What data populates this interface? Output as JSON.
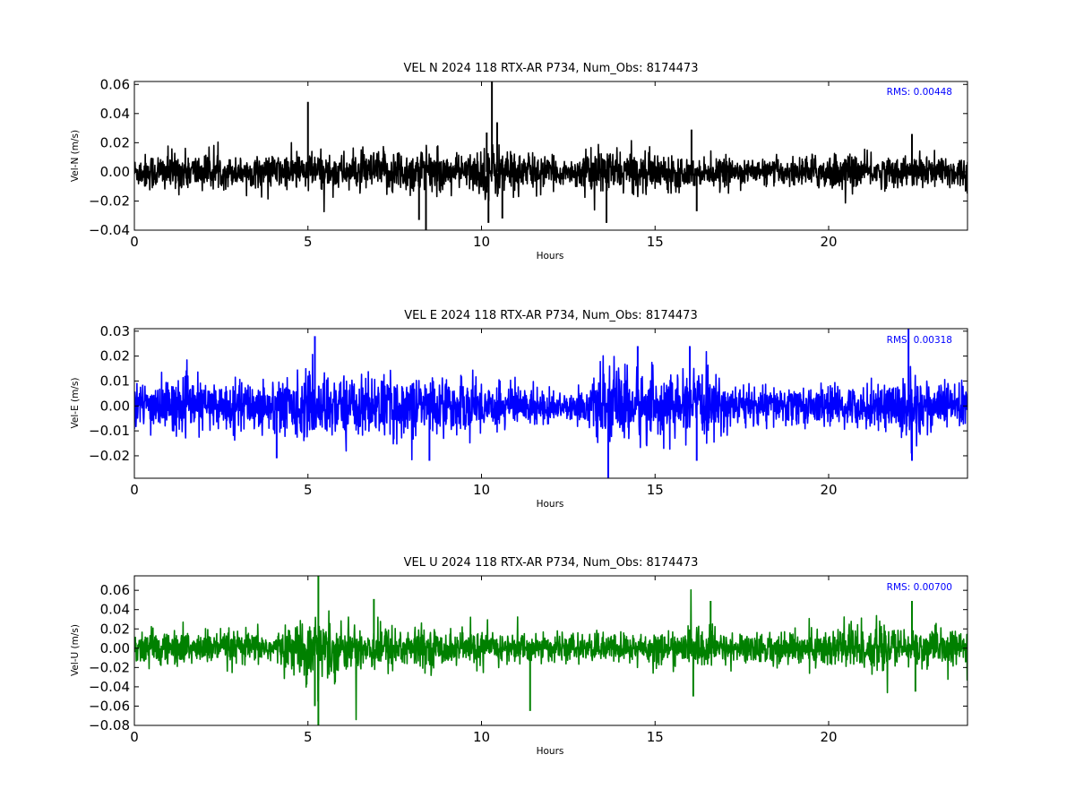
{
  "chart_data": [
    {
      "type": "line",
      "title": "VEL N 2024 118 RTX-AR  P734, Num_Obs: 8174473",
      "xlabel": "Hours",
      "ylabel": "Vel-N (m/s)",
      "annotation": "RMS:  0.00448",
      "color": "#000000",
      "xlim": [
        0,
        24
      ],
      "ylim": [
        -0.04,
        0.062
      ],
      "xticks": [
        0,
        5,
        10,
        15,
        20
      ],
      "xtick_labels": [
        "0",
        "5",
        "10",
        "15",
        "20"
      ],
      "yticks": [
        -0.04,
        -0.02,
        0.0,
        0.02,
        0.04,
        0.06
      ],
      "ytick_labels": [
        "−0.04",
        "−0.02",
        "0.00",
        "0.02",
        "0.04",
        "0.06"
      ],
      "amplitude_envelope": {
        "x": [
          0,
          0.3,
          0.5,
          1,
          2,
          3,
          4,
          5,
          6,
          7,
          7.5,
          8,
          8.5,
          9,
          9.5,
          10,
          10.3,
          11,
          11.5,
          12,
          12.5,
          13,
          13.5,
          14,
          15,
          16,
          16.2,
          17,
          18,
          19,
          20,
          21,
          22,
          23,
          24
        ],
        "y": [
          0.011,
          0.014,
          0.015,
          0.016,
          0.014,
          0.011,
          0.013,
          0.016,
          0.014,
          0.016,
          0.019,
          0.018,
          0.018,
          0.014,
          0.013,
          0.019,
          0.022,
          0.017,
          0.014,
          0.011,
          0.009,
          0.015,
          0.018,
          0.016,
          0.015,
          0.012,
          0.009,
          0.011,
          0.009,
          0.011,
          0.015,
          0.013,
          0.012,
          0.014,
          0.013
        ]
      },
      "spikes": [
        {
          "x": 5.0,
          "y": 0.048
        },
        {
          "x": 8.4,
          "y": -0.04
        },
        {
          "x": 8.2,
          "y": -0.033
        },
        {
          "x": 10.15,
          "y": 0.027
        },
        {
          "x": 10.2,
          "y": -0.035
        },
        {
          "x": 10.3,
          "y": 0.062
        },
        {
          "x": 10.45,
          "y": 0.034
        },
        {
          "x": 10.6,
          "y": -0.032
        },
        {
          "x": 13.6,
          "y": -0.035
        },
        {
          "x": 16.05,
          "y": 0.029
        },
        {
          "x": 16.2,
          "y": -0.027
        },
        {
          "x": 22.4,
          "y": 0.026
        }
      ]
    },
    {
      "type": "line",
      "title": "VEL E 2024 118 RTX-AR  P734, Num_Obs: 8174473",
      "xlabel": "Hours",
      "ylabel": "Vel-E (m/s)",
      "annotation": "RMS:  0.00318",
      "color": "#0000ff",
      "xlim": [
        0,
        24
      ],
      "ylim": [
        -0.029,
        0.031
      ],
      "xticks": [
        0,
        5,
        10,
        15,
        20
      ],
      "xtick_labels": [
        "0",
        "5",
        "10",
        "15",
        "20"
      ],
      "yticks": [
        -0.02,
        -0.01,
        0.0,
        0.01,
        0.02,
        0.03
      ],
      "ytick_labels": [
        "−0.02",
        "−0.01",
        "0.00",
        "0.01",
        "0.02",
        "0.03"
      ],
      "amplitude_envelope": {
        "x": [
          0,
          1,
          2,
          3,
          4,
          5,
          6,
          7,
          8,
          9,
          10,
          11,
          12,
          12.5,
          13,
          13.5,
          14,
          15,
          16,
          16.2,
          17,
          18,
          19,
          20,
          21,
          22,
          22.4,
          23,
          24
        ],
        "y": [
          0.011,
          0.012,
          0.011,
          0.011,
          0.013,
          0.015,
          0.014,
          0.014,
          0.014,
          0.013,
          0.012,
          0.01,
          0.008,
          0.005,
          0.009,
          0.015,
          0.018,
          0.015,
          0.012,
          0.016,
          0.011,
          0.009,
          0.009,
          0.009,
          0.009,
          0.013,
          0.018,
          0.011,
          0.01
        ]
      },
      "spikes": [
        {
          "x": 4.1,
          "y": -0.021
        },
        {
          "x": 5.2,
          "y": 0.028
        },
        {
          "x": 8.5,
          "y": -0.022
        },
        {
          "x": 13.65,
          "y": -0.029
        },
        {
          "x": 14.5,
          "y": 0.024
        },
        {
          "x": 16.0,
          "y": 0.024
        },
        {
          "x": 16.2,
          "y": -0.022
        },
        {
          "x": 22.3,
          "y": 0.031
        },
        {
          "x": 22.4,
          "y": -0.022
        }
      ]
    },
    {
      "type": "line",
      "title": "VEL U 2024 118 RTX-AR  P734, Num_Obs: 8174473",
      "xlabel": "Hours",
      "ylabel": "Vel-U (m/s)",
      "annotation": "RMS:  0.00700",
      "color": "#008000",
      "xlim": [
        0,
        24
      ],
      "ylim": [
        -0.08,
        0.075
      ],
      "xticks": [
        0,
        5,
        10,
        15,
        20
      ],
      "xtick_labels": [
        "0",
        "5",
        "10",
        "15",
        "20"
      ],
      "yticks": [
        -0.08,
        -0.06,
        -0.04,
        -0.02,
        0.0,
        0.02,
        0.04,
        0.06
      ],
      "ytick_labels": [
        "−0.08",
        "−0.06",
        "−0.04",
        "−0.02",
        "0.00",
        "0.02",
        "0.04",
        "0.06"
      ],
      "amplitude_envelope": {
        "x": [
          0,
          1,
          2,
          3,
          4,
          4.5,
          5,
          5.3,
          5.7,
          6,
          7,
          8,
          9,
          10,
          11,
          12,
          13,
          14,
          15,
          16,
          16.2,
          17,
          18,
          19,
          20,
          20.5,
          21,
          22,
          23,
          24
        ],
        "y": [
          0.02,
          0.022,
          0.02,
          0.02,
          0.018,
          0.025,
          0.038,
          0.042,
          0.035,
          0.027,
          0.028,
          0.025,
          0.02,
          0.02,
          0.018,
          0.016,
          0.016,
          0.018,
          0.02,
          0.018,
          0.03,
          0.018,
          0.018,
          0.02,
          0.025,
          0.035,
          0.03,
          0.022,
          0.022,
          0.02
        ]
      },
      "spikes": [
        {
          "x": 5.2,
          "y": -0.06
        },
        {
          "x": 5.3,
          "y": 0.075
        },
        {
          "x": 5.3,
          "y": -0.08
        },
        {
          "x": 6.9,
          "y": 0.051
        },
        {
          "x": 11.4,
          "y": -0.065
        },
        {
          "x": 16.1,
          "y": -0.05
        },
        {
          "x": 16.6,
          "y": 0.049
        },
        {
          "x": 22.4,
          "y": 0.049
        },
        {
          "x": 22.5,
          "y": -0.045
        }
      ]
    }
  ]
}
